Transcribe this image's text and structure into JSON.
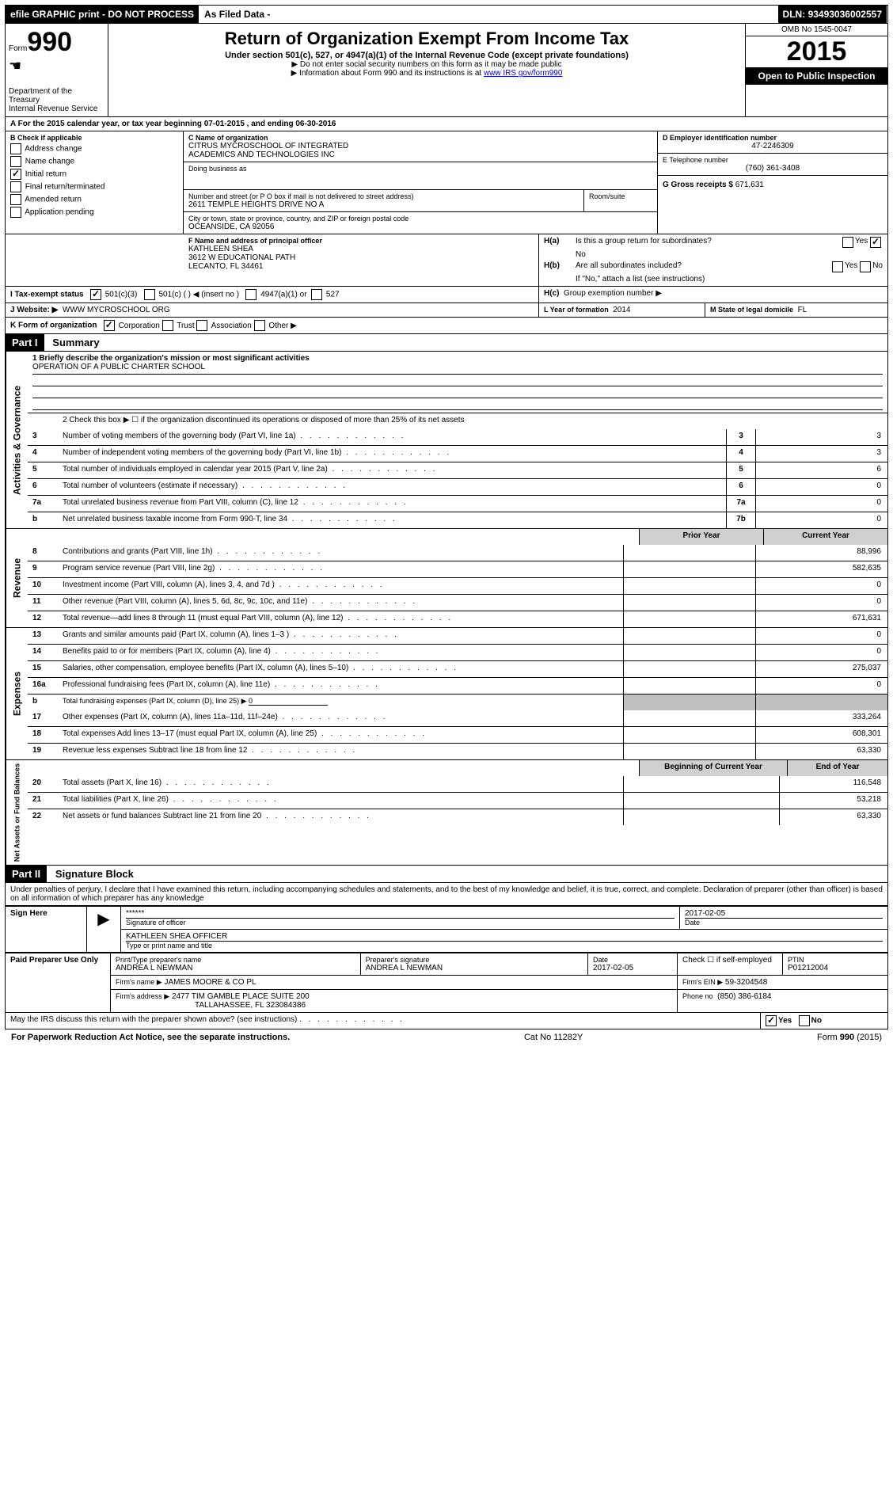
{
  "topbar": {
    "efile": "efile GRAPHIC print - DO NOT PROCESS",
    "asfiled": "As Filed Data -",
    "dln_label": "DLN:",
    "dln": "93493036002557"
  },
  "header": {
    "form_label": "Form",
    "form_no": "990",
    "dept": "Department of the Treasury",
    "irs": "Internal Revenue Service",
    "title": "Return of Organization Exempt From Income Tax",
    "sub1": "Under section 501(c), 527, or 4947(a)(1) of the Internal Revenue Code (except private foundations)",
    "sub2": "▶ Do not enter social security numbers on this form as it may be made public",
    "sub3_pre": "▶ Information about Form 990 and its instructions is at ",
    "sub3_link": "www IRS gov/form990",
    "omb": "OMB No 1545-0047",
    "year": "2015",
    "open": "Open to Public Inspection"
  },
  "lineA": {
    "text_pre": "A  For the 2015 calendar year, or tax year beginning ",
    "begin": "07-01-2015",
    "mid": " , and ending ",
    "end": "06-30-2016"
  },
  "B": {
    "label": "B Check if applicable",
    "items": [
      "Address change",
      "Name change",
      "Initial return",
      "Final return/terminated",
      "Amended return",
      "Application pending"
    ],
    "checked_idx": 2
  },
  "C": {
    "name_label": "C Name of organization",
    "name1": "CITRUS MYCROSCHOOL OF INTEGRATED",
    "name2": "ACADEMICS AND TECHNOLOGIES INC",
    "dba_label": "Doing business as",
    "addr_label": "Number and street (or P O box if mail is not delivered to street address)",
    "room_label": "Room/suite",
    "addr": "2611 TEMPLE HEIGHTS DRIVE NO A",
    "city_label": "City or town, state or province, country, and ZIP or foreign postal code",
    "city": "OCEANSIDE, CA 92056"
  },
  "D": {
    "label": "D Employer identification number",
    "value": "47-2246309"
  },
  "E": {
    "label": "E Telephone number",
    "value": "(760) 361-3408"
  },
  "G": {
    "label": "G Gross receipts $",
    "value": "671,631"
  },
  "F": {
    "label": "F Name and address of principal officer",
    "name": "KATHLEEN SHEA",
    "addr1": "3612 W EDUCATIONAL PATH",
    "addr2": "LECANTO, FL 34461"
  },
  "H": {
    "a_label": "H(a)",
    "a_text": "Is this a group return for subordinates?",
    "a_ans": "No",
    "a_yes": "Yes",
    "b_label": "H(b)",
    "b_text": "Are all subordinates included?",
    "b_yes": "Yes",
    "b_no": "No",
    "b_note": "If \"No,\" attach a list (see instructions)",
    "c_label": "H(c)",
    "c_text": "Group exemption number ▶"
  },
  "I": {
    "label": "I   Tax-exempt status",
    "opt1": "501(c)(3)",
    "opt2": "501(c) ( ) ◀ (insert no )",
    "opt3": "4947(a)(1) or",
    "opt4": "527"
  },
  "J": {
    "label": "J   Website: ▶",
    "value": "WWW MYCROSCHOOL ORG"
  },
  "K": {
    "label": "K Form of organization",
    "opts": [
      "Corporation",
      "Trust",
      "Association",
      "Other ▶"
    ],
    "checked": 0
  },
  "L": {
    "label": "L Year of formation",
    "value": "2014"
  },
  "M": {
    "label": "M State of legal domicile",
    "value": "FL"
  },
  "partI": {
    "header": "Part I",
    "title": "Summary"
  },
  "summary": {
    "gov_label": "Activities & Governance",
    "rev_label": "Revenue",
    "exp_label": "Expenses",
    "nab_label": "Net Assets or Fund Balances",
    "l1_label": "1 Briefly describe the organization's mission or most significant activities",
    "l1_val": "OPERATION OF A PUBLIC CHARTER SCHOOL",
    "l2": "2 Check this box ▶ ☐ if the organization discontinued its operations or disposed of more than 25% of its net assets",
    "lines_gov": [
      {
        "n": "3",
        "d": "Number of voting members of the governing body (Part VI, line 1a)",
        "b": "3",
        "v": "3"
      },
      {
        "n": "4",
        "d": "Number of independent voting members of the governing body (Part VI, line 1b)",
        "b": "4",
        "v": "3"
      },
      {
        "n": "5",
        "d": "Total number of individuals employed in calendar year 2015 (Part V, line 2a)",
        "b": "5",
        "v": "6"
      },
      {
        "n": "6",
        "d": "Total number of volunteers (estimate if necessary)",
        "b": "6",
        "v": "0"
      },
      {
        "n": "7a",
        "d": "Total unrelated business revenue from Part VIII, column (C), line 12",
        "b": "7a",
        "v": "0"
      },
      {
        "n": "b",
        "d": "Net unrelated business taxable income from Form 990-T, line 34",
        "b": "7b",
        "v": "0"
      }
    ],
    "col_prior": "Prior Year",
    "col_curr": "Current Year",
    "lines_rev": [
      {
        "n": "8",
        "d": "Contributions and grants (Part VIII, line 1h)",
        "p": "",
        "c": "88,996"
      },
      {
        "n": "9",
        "d": "Program service revenue (Part VIII, line 2g)",
        "p": "",
        "c": "582,635"
      },
      {
        "n": "10",
        "d": "Investment income (Part VIII, column (A), lines 3, 4, and 7d )",
        "p": "",
        "c": "0"
      },
      {
        "n": "11",
        "d": "Other revenue (Part VIII, column (A), lines 5, 6d, 8c, 9c, 10c, and 11e)",
        "p": "",
        "c": "0"
      },
      {
        "n": "12",
        "d": "Total revenue—add lines 8 through 11 (must equal Part VIII, column (A), line 12)",
        "p": "",
        "c": "671,631"
      }
    ],
    "lines_exp": [
      {
        "n": "13",
        "d": "Grants and similar amounts paid (Part IX, column (A), lines 1–3 )",
        "p": "",
        "c": "0"
      },
      {
        "n": "14",
        "d": "Benefits paid to or for members (Part IX, column (A), line 4)",
        "p": "",
        "c": "0"
      },
      {
        "n": "15",
        "d": "Salaries, other compensation, employee benefits (Part IX, column (A), lines 5–10)",
        "p": "",
        "c": "275,037"
      },
      {
        "n": "16a",
        "d": "Professional fundraising fees (Part IX, column (A), line 11e)",
        "p": "",
        "c": "0"
      }
    ],
    "line_b": {
      "n": "b",
      "d": "Total fundraising expenses (Part IX, column (D), line 25) ▶",
      "v": "0"
    },
    "lines_exp2": [
      {
        "n": "17",
        "d": "Other expenses (Part IX, column (A), lines 11a–11d, 11f–24e)",
        "p": "",
        "c": "333,264"
      },
      {
        "n": "18",
        "d": "Total expenses Add lines 13–17 (must equal Part IX, column (A), line 25)",
        "p": "",
        "c": "608,301"
      },
      {
        "n": "19",
        "d": "Revenue less expenses Subtract line 18 from line 12",
        "p": "",
        "c": "63,330"
      }
    ],
    "col_begin": "Beginning of Current Year",
    "col_end": "End of Year",
    "lines_nab": [
      {
        "n": "20",
        "d": "Total assets (Part X, line 16)",
        "p": "",
        "c": "116,548"
      },
      {
        "n": "21",
        "d": "Total liabilities (Part X, line 26)",
        "p": "",
        "c": "53,218"
      },
      {
        "n": "22",
        "d": "Net assets or fund balances Subtract line 21 from line 20",
        "p": "",
        "c": "63,330"
      }
    ]
  },
  "partII": {
    "header": "Part II",
    "title": "Signature Block"
  },
  "perjury": "Under penalties of perjury, I declare that I have examined this return, including accompanying schedules and statements, and to the best of my knowledge and belief, it is true, correct, and complete. Declaration of preparer (other than officer) is based on all information of which preparer has any knowledge",
  "sign": {
    "here": "Sign Here",
    "stars": "******",
    "sig_off": "Signature of officer",
    "date": "2017-02-05",
    "date_label": "Date",
    "name": "KATHLEEN SHEA OFFICER",
    "type_label": "Type or print name and title"
  },
  "paid": {
    "label": "Paid Preparer Use Only",
    "prep_name_label": "Print/Type preparer's name",
    "prep_name": "ANDREA L NEWMAN",
    "prep_sig_label": "Preparer's signature",
    "prep_sig": "ANDREA L NEWMAN",
    "prep_date_label": "Date",
    "prep_date": "2017-02-05",
    "check_label": "Check ☐ if self-employed",
    "ptin_label": "PTIN",
    "ptin": "P01212004",
    "firm_name_label": "Firm's name  ▶",
    "firm_name": "JAMES MOORE & CO PL",
    "firm_ein_label": "Firm's EIN ▶",
    "firm_ein": "59-3204548",
    "firm_addr_label": "Firm's address ▶",
    "firm_addr1": "2477 TIM GAMBLE PLACE SUITE 200",
    "firm_addr2": "TALLAHASSEE, FL 323084386",
    "phone_label": "Phone no",
    "phone": "(850) 386-6184"
  },
  "may_irs": {
    "text": "May the IRS discuss this return with the preparer shown above? (see instructions)",
    "yes": "Yes",
    "no": "No"
  },
  "footer": {
    "left": "For Paperwork Reduction Act Notice, see the separate instructions.",
    "mid": "Cat No 11282Y",
    "right": "Form 990 (2015)"
  }
}
